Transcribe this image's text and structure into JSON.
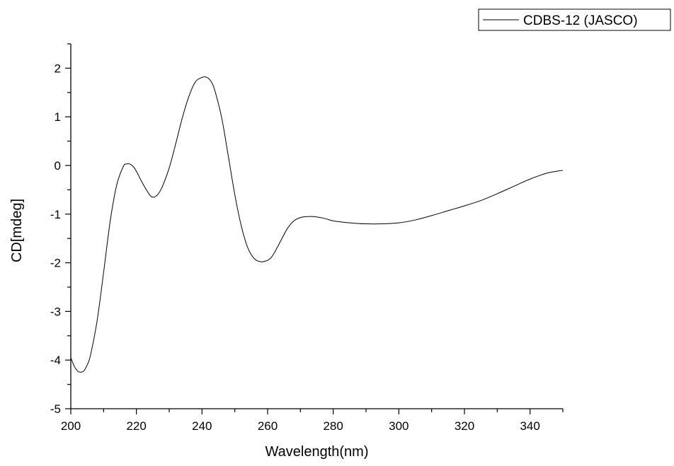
{
  "chart_data": {
    "type": "line",
    "xlabel": "Wavelength(nm)",
    "ylabel": "CD[mdeg]",
    "xlim": [
      200,
      350
    ],
    "ylim": [
      -5,
      2.5
    ],
    "x_ticks": [
      200,
      220,
      240,
      260,
      280,
      300,
      320,
      340
    ],
    "y_ticks": [
      -5,
      -4,
      -3,
      -2,
      -1,
      0,
      1,
      2
    ],
    "x_tick_labels": [
      "200",
      "220",
      "240",
      "260",
      "280",
      "300",
      "320",
      "340"
    ],
    "y_tick_labels": [
      "-5",
      "-4",
      "-3",
      "-2",
      "-1",
      "0",
      "1",
      "2"
    ],
    "grid": false,
    "legend_position": "top-right",
    "series": [
      {
        "name": "CDBS-12 (JASCO)",
        "color": "#000000",
        "x": [
          200,
          201,
          202,
          203,
          204,
          205,
          206,
          208,
          210,
          212,
          214,
          216,
          217,
          218,
          219,
          220,
          222,
          224,
          225,
          226,
          227,
          228,
          230,
          232,
          234,
          236,
          238,
          240,
          241,
          242,
          243,
          244,
          246,
          248,
          250,
          252,
          254,
          256,
          258,
          259,
          260,
          261,
          262,
          264,
          266,
          268,
          270,
          272,
          274,
          276,
          278,
          280,
          285,
          290,
          295,
          300,
          305,
          310,
          315,
          320,
          325,
          330,
          335,
          340,
          345,
          348,
          350
        ],
        "y": [
          -3.95,
          -4.12,
          -4.22,
          -4.25,
          -4.22,
          -4.1,
          -3.9,
          -3.2,
          -2.2,
          -1.15,
          -0.4,
          -0.02,
          0.03,
          0.03,
          -0.02,
          -0.12,
          -0.38,
          -0.6,
          -0.65,
          -0.63,
          -0.55,
          -0.42,
          -0.05,
          0.45,
          0.98,
          1.42,
          1.72,
          1.81,
          1.82,
          1.79,
          1.7,
          1.52,
          0.98,
          0.2,
          -0.6,
          -1.25,
          -1.7,
          -1.92,
          -1.98,
          -1.97,
          -1.95,
          -1.9,
          -1.8,
          -1.55,
          -1.3,
          -1.14,
          -1.07,
          -1.05,
          -1.05,
          -1.07,
          -1.1,
          -1.14,
          -1.18,
          -1.2,
          -1.2,
          -1.18,
          -1.12,
          -1.03,
          -0.93,
          -0.83,
          -0.72,
          -0.58,
          -0.43,
          -0.28,
          -0.16,
          -0.12,
          -0.1
        ]
      }
    ]
  }
}
